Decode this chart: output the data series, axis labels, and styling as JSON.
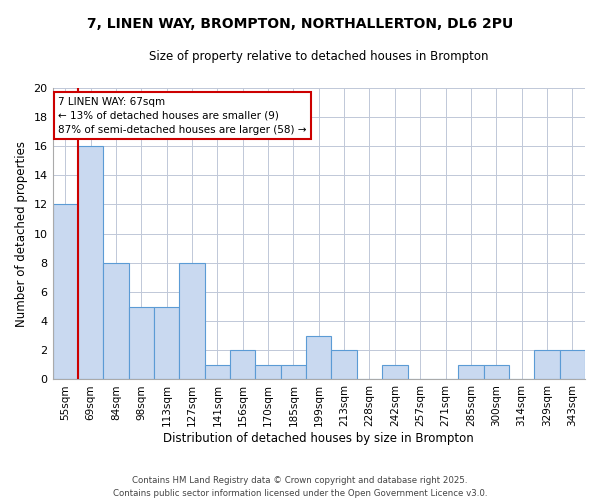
{
  "title": "7, LINEN WAY, BROMPTON, NORTHALLERTON, DL6 2PU",
  "subtitle": "Size of property relative to detached houses in Brompton",
  "xlabel": "Distribution of detached houses by size in Brompton",
  "ylabel": "Number of detached properties",
  "categories": [
    "55sqm",
    "69sqm",
    "84sqm",
    "98sqm",
    "113sqm",
    "127sqm",
    "141sqm",
    "156sqm",
    "170sqm",
    "185sqm",
    "199sqm",
    "213sqm",
    "228sqm",
    "242sqm",
    "257sqm",
    "271sqm",
    "285sqm",
    "300sqm",
    "314sqm",
    "329sqm",
    "343sqm"
  ],
  "values": [
    12,
    16,
    8,
    5,
    5,
    8,
    1,
    2,
    1,
    1,
    3,
    2,
    0,
    1,
    0,
    0,
    1,
    1,
    0,
    2,
    2
  ],
  "bar_color": "#c9d9f0",
  "bar_edge_color": "#5b9bd5",
  "vline_color": "#cc0000",
  "annotation_title": "7 LINEN WAY: 67sqm",
  "annotation_line1": "← 13% of detached houses are smaller (9)",
  "annotation_line2": "87% of semi-detached houses are larger (58) →",
  "annotation_box_color": "#cc0000",
  "ylim": [
    0,
    20
  ],
  "yticks": [
    0,
    2,
    4,
    6,
    8,
    10,
    12,
    14,
    16,
    18,
    20
  ],
  "footer_line1": "Contains HM Land Registry data © Crown copyright and database right 2025.",
  "footer_line2": "Contains public sector information licensed under the Open Government Licence v3.0.",
  "bg_color": "#ffffff",
  "grid_color": "#c0c8d8"
}
